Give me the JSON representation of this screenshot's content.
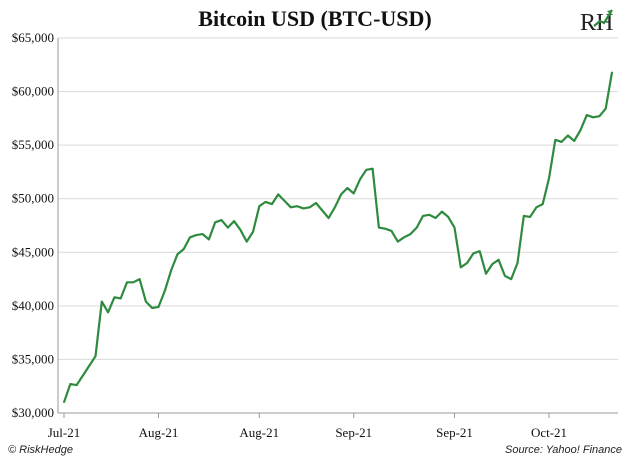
{
  "chart_data": {
    "type": "line",
    "title": "Bitcoin USD (BTC-USD)",
    "xlabel": "",
    "ylabel": "",
    "ylim": [
      30000,
      65000
    ],
    "yticks": [
      30000,
      35000,
      40000,
      45000,
      50000,
      55000,
      60000,
      65000
    ],
    "ytick_labels": [
      "$30,000",
      "$35,000",
      "$40,000",
      "$45,000",
      "$50,000",
      "$55,000",
      "$60,000",
      "$65,000"
    ],
    "xtick_labels": [
      "Jul-21",
      "Aug-21",
      "Aug-21",
      "Sep-21",
      "Sep-21",
      "Oct-21"
    ],
    "xtick_index": [
      0,
      15,
      31,
      46,
      62,
      77
    ],
    "grid": "horizontal",
    "line_color": "#2e8b3e",
    "series": [
      {
        "values": [
          31000,
          32700,
          32600,
          33500,
          34400,
          35300,
          40400,
          39400,
          40800,
          40700,
          42200,
          42200,
          42500,
          40400,
          39800,
          39900,
          41400,
          43300,
          44800,
          45300,
          46400,
          46600,
          46700,
          46200,
          47800,
          48000,
          47300,
          47900,
          47100,
          46000,
          46900,
          49300,
          49700,
          49500,
          50400,
          49800,
          49200,
          49300,
          49100,
          49200,
          49600,
          48900,
          48200,
          49200,
          50400,
          51000,
          50500,
          51800,
          52700,
          52800,
          47300,
          47200,
          47000,
          46000,
          46400,
          46700,
          47300,
          48400,
          48500,
          48200,
          48800,
          48300,
          47300,
          43600,
          44000,
          44900,
          45100,
          43000,
          43900,
          44300,
          42800,
          42500,
          44000,
          48400,
          48300,
          49200,
          49500,
          51900,
          55500,
          55300,
          55900,
          55400,
          56400,
          57800,
          57600,
          57700,
          58400,
          61800
        ]
      }
    ]
  },
  "footer": {
    "left": "© RiskHedge",
    "right": "Source: Yahoo! Finance"
  },
  "logo": {
    "text": "RH",
    "accent": "#2e8b3e"
  }
}
